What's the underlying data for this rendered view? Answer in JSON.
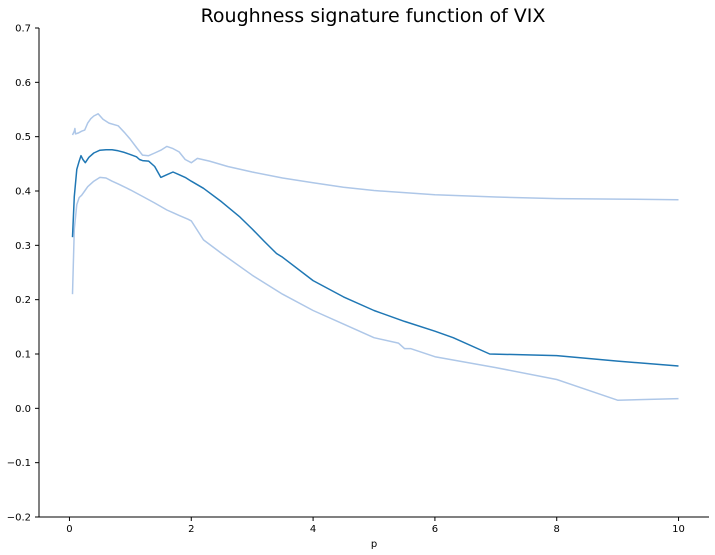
{
  "chart_data": {
    "type": "line",
    "title": "Roughness signature function of VIX",
    "xlabel": "p",
    "ylabel": "",
    "xlim": [
      -0.5,
      10.5
    ],
    "ylim": [
      -0.2,
      0.7
    ],
    "xticks": [
      0,
      2,
      4,
      6,
      8,
      10
    ],
    "yticks": [
      -0.2,
      -0.1,
      0.0,
      0.1,
      0.2,
      0.3,
      0.4,
      0.5,
      0.6,
      0.7
    ],
    "xtick_labels": [
      "0",
      "2",
      "4",
      "6",
      "8",
      "10"
    ],
    "ytick_labels": [
      "−0.2",
      "−0.1",
      "0.0",
      "0.1",
      "0.2",
      "0.3",
      "0.4",
      "0.5",
      "0.6",
      "0.7"
    ],
    "grid": false,
    "legend": "none",
    "spines": [
      "left",
      "bottom"
    ],
    "series": [
      {
        "role": "estimate",
        "color": "#1f77b4",
        "x": [
          0.05,
          0.08,
          0.12,
          0.16,
          0.19,
          0.22,
          0.26,
          0.32,
          0.4,
          0.5,
          0.6,
          0.7,
          0.8,
          0.9,
          1.0,
          1.1,
          1.15,
          1.2,
          1.3,
          1.4,
          1.5,
          1.6,
          1.7,
          1.8,
          1.9,
          2.0,
          2.2,
          2.5,
          2.8,
          3.0,
          3.2,
          3.4,
          3.5,
          4.0,
          4.5,
          5.0,
          5.5,
          6.0,
          6.3,
          6.9,
          8.0,
          9.0,
          10.0
        ],
        "y": [
          0.315,
          0.39,
          0.44,
          0.455,
          0.465,
          0.458,
          0.452,
          0.462,
          0.47,
          0.475,
          0.476,
          0.476,
          0.474,
          0.471,
          0.467,
          0.463,
          0.458,
          0.456,
          0.455,
          0.445,
          0.425,
          0.43,
          0.435,
          0.43,
          0.425,
          0.418,
          0.405,
          0.38,
          0.352,
          0.33,
          0.307,
          0.285,
          0.278,
          0.235,
          0.205,
          0.18,
          0.16,
          0.142,
          0.13,
          0.1,
          0.097,
          0.087,
          0.078
        ]
      },
      {
        "role": "upper band",
        "color": "#aec7e8",
        "x": [
          0.05,
          0.08,
          0.09,
          0.1,
          0.15,
          0.2,
          0.25,
          0.3,
          0.35,
          0.4,
          0.47,
          0.55,
          0.65,
          0.8,
          0.9,
          1.0,
          1.1,
          1.2,
          1.3,
          1.4,
          1.5,
          1.6,
          1.7,
          1.8,
          1.9,
          2.0,
          2.1,
          2.3,
          2.6,
          3.0,
          3.5,
          4.0,
          4.5,
          5.0,
          6.0,
          7.0,
          8.0,
          9.0,
          10.0
        ],
        "y": [
          0.503,
          0.51,
          0.515,
          0.505,
          0.507,
          0.51,
          0.512,
          0.525,
          0.533,
          0.538,
          0.542,
          0.532,
          0.525,
          0.52,
          0.508,
          0.495,
          0.48,
          0.466,
          0.465,
          0.47,
          0.475,
          0.482,
          0.478,
          0.472,
          0.458,
          0.452,
          0.46,
          0.455,
          0.445,
          0.435,
          0.424,
          0.415,
          0.407,
          0.401,
          0.393,
          0.389,
          0.386,
          0.385,
          0.384
        ]
      },
      {
        "role": "lower band",
        "color": "#aec7e8",
        "x": [
          0.05,
          0.08,
          0.12,
          0.16,
          0.2,
          0.25,
          0.3,
          0.4,
          0.5,
          0.6,
          0.7,
          0.8,
          1.0,
          1.2,
          1.4,
          1.6,
          1.7,
          1.8,
          1.95,
          2.0,
          2.2,
          2.5,
          3.0,
          3.5,
          4.0,
          4.5,
          5.0,
          5.4,
          5.5,
          5.6,
          6.0,
          7.0,
          8.0,
          9.0,
          10.0
        ],
        "y": [
          0.21,
          0.33,
          0.375,
          0.388,
          0.392,
          0.4,
          0.408,
          0.418,
          0.425,
          0.424,
          0.418,
          0.413,
          0.402,
          0.39,
          0.378,
          0.365,
          0.36,
          0.355,
          0.348,
          0.345,
          0.31,
          0.285,
          0.245,
          0.21,
          0.18,
          0.155,
          0.13,
          0.12,
          0.11,
          0.11,
          0.095,
          0.075,
          0.053,
          0.015,
          0.018
        ]
      }
    ]
  }
}
